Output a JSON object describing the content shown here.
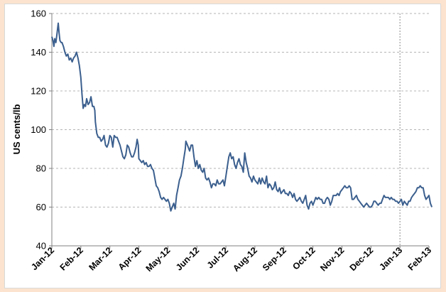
{
  "chart_data": {
    "type": "line",
    "title": "",
    "xlabel": "",
    "ylabel": "US cents/lb",
    "ylim": [
      40,
      160
    ],
    "yticks": [
      40,
      60,
      80,
      100,
      120,
      140,
      160
    ],
    "xticks": [
      "Jan-12",
      "Feb-12",
      "Mar-12",
      "Apr-12",
      "May-12",
      "Jun-12",
      "Jul-12",
      "Aug-12",
      "Sep-12",
      "Oct-12",
      "Nov-12",
      "Dec-12",
      "Jan-13",
      "Feb-13"
    ],
    "grid": "horizontal dashed",
    "legend": "none",
    "marker_line": "Jan-13",
    "line_color": "#3b5f8e",
    "series": [
      {
        "values": [
          [
            0.0,
            148
          ],
          [
            0.04,
            146
          ],
          [
            0.07,
            143
          ],
          [
            0.1,
            147
          ],
          [
            0.14,
            145
          ],
          [
            0.18,
            150
          ],
          [
            0.22,
            155
          ],
          [
            0.25,
            150
          ],
          [
            0.28,
            146
          ],
          [
            0.32,
            145
          ],
          [
            0.35,
            145
          ],
          [
            0.4,
            143
          ],
          [
            0.45,
            140
          ],
          [
            0.5,
            138
          ],
          [
            0.55,
            139
          ],
          [
            0.6,
            136
          ],
          [
            0.65,
            137
          ],
          [
            0.7,
            135
          ],
          [
            0.75,
            137
          ],
          [
            0.8,
            138
          ],
          [
            0.85,
            140
          ],
          [
            0.9,
            137
          ],
          [
            0.95,
            133
          ],
          [
            1.0,
            127
          ],
          [
            1.04,
            118
          ],
          [
            1.08,
            111
          ],
          [
            1.12,
            113
          ],
          [
            1.16,
            112
          ],
          [
            1.2,
            116
          ],
          [
            1.25,
            113
          ],
          [
            1.3,
            114
          ],
          [
            1.35,
            117
          ],
          [
            1.4,
            112
          ],
          [
            1.45,
            112
          ],
          [
            1.48,
            110
          ],
          [
            1.5,
            104
          ],
          [
            1.55,
            98
          ],
          [
            1.6,
            96
          ],
          [
            1.65,
            96
          ],
          [
            1.7,
            94
          ],
          [
            1.75,
            95
          ],
          [
            1.8,
            97
          ],
          [
            1.85,
            92
          ],
          [
            1.9,
            91
          ],
          [
            1.95,
            93
          ],
          [
            2.0,
            97
          ],
          [
            2.05,
            96
          ],
          [
            2.1,
            91
          ],
          [
            2.15,
            97
          ],
          [
            2.2,
            96
          ],
          [
            2.25,
            96
          ],
          [
            2.3,
            94
          ],
          [
            2.35,
            92
          ],
          [
            2.4,
            89
          ],
          [
            2.45,
            86
          ],
          [
            2.5,
            85
          ],
          [
            2.55,
            87
          ],
          [
            2.6,
            92
          ],
          [
            2.65,
            91
          ],
          [
            2.7,
            88
          ],
          [
            2.75,
            86
          ],
          [
            2.8,
            86
          ],
          [
            2.85,
            88
          ],
          [
            2.9,
            91
          ],
          [
            2.94,
            95
          ],
          [
            2.98,
            92
          ],
          [
            3.0,
            85
          ],
          [
            3.05,
            84
          ],
          [
            3.1,
            83
          ],
          [
            3.15,
            84
          ],
          [
            3.2,
            82
          ],
          [
            3.25,
            83
          ],
          [
            3.3,
            81
          ],
          [
            3.35,
            81
          ],
          [
            3.4,
            82
          ],
          [
            3.45,
            80
          ],
          [
            3.5,
            79
          ],
          [
            3.55,
            75
          ],
          [
            3.6,
            71
          ],
          [
            3.65,
            70
          ],
          [
            3.7,
            68
          ],
          [
            3.75,
            65
          ],
          [
            3.8,
            64
          ],
          [
            3.85,
            65
          ],
          [
            3.9,
            64
          ],
          [
            3.95,
            63
          ],
          [
            4.0,
            64
          ],
          [
            4.05,
            62
          ],
          [
            4.1,
            58
          ],
          [
            4.15,
            60
          ],
          [
            4.2,
            62
          ],
          [
            4.25,
            59
          ],
          [
            4.3,
            66
          ],
          [
            4.35,
            70
          ],
          [
            4.4,
            74
          ],
          [
            4.45,
            76
          ],
          [
            4.5,
            80
          ],
          [
            4.55,
            85
          ],
          [
            4.6,
            90
          ],
          [
            4.62,
            94
          ],
          [
            4.65,
            93
          ],
          [
            4.7,
            91
          ],
          [
            4.75,
            89
          ],
          [
            4.8,
            92
          ],
          [
            4.85,
            92
          ],
          [
            4.9,
            86
          ],
          [
            4.95,
            81
          ],
          [
            5.0,
            84
          ],
          [
            5.05,
            80
          ],
          [
            5.1,
            82
          ],
          [
            5.15,
            79
          ],
          [
            5.2,
            78
          ],
          [
            5.25,
            80
          ],
          [
            5.3,
            75
          ],
          [
            5.35,
            74
          ],
          [
            5.4,
            75
          ],
          [
            5.45,
            73
          ],
          [
            5.5,
            70
          ],
          [
            5.55,
            72
          ],
          [
            5.6,
            72
          ],
          [
            5.65,
            71
          ],
          [
            5.7,
            74
          ],
          [
            5.75,
            72
          ],
          [
            5.8,
            72
          ],
          [
            5.85,
            73
          ],
          [
            5.9,
            74
          ],
          [
            5.95,
            71
          ],
          [
            6.0,
            76
          ],
          [
            6.05,
            81
          ],
          [
            6.1,
            86
          ],
          [
            6.15,
            88
          ],
          [
            6.2,
            85
          ],
          [
            6.25,
            86
          ],
          [
            6.3,
            82
          ],
          [
            6.35,
            80
          ],
          [
            6.4,
            83
          ],
          [
            6.45,
            85
          ],
          [
            6.5,
            82
          ],
          [
            6.55,
            81
          ],
          [
            6.6,
            78
          ],
          [
            6.65,
            88
          ],
          [
            6.7,
            83
          ],
          [
            6.75,
            80
          ],
          [
            6.8,
            76
          ],
          [
            6.85,
            75
          ],
          [
            6.9,
            73
          ],
          [
            6.95,
            76
          ],
          [
            7.0,
            74
          ],
          [
            7.05,
            73
          ],
          [
            7.1,
            72
          ],
          [
            7.15,
            75
          ],
          [
            7.2,
            72
          ],
          [
            7.25,
            75
          ],
          [
            7.3,
            73
          ],
          [
            7.35,
            72
          ],
          [
            7.4,
            76
          ],
          [
            7.45,
            70
          ],
          [
            7.5,
            72
          ],
          [
            7.55,
            71
          ],
          [
            7.6,
            69
          ],
          [
            7.65,
            70
          ],
          [
            7.7,
            73
          ],
          [
            7.75,
            69
          ],
          [
            7.8,
            68
          ],
          [
            7.85,
            70
          ],
          [
            7.9,
            67
          ],
          [
            7.95,
            68
          ],
          [
            8.0,
            69
          ],
          [
            8.05,
            67
          ],
          [
            8.1,
            67
          ],
          [
            8.15,
            66
          ],
          [
            8.2,
            68
          ],
          [
            8.25,
            67
          ],
          [
            8.3,
            65
          ],
          [
            8.35,
            67
          ],
          [
            8.4,
            64
          ],
          [
            8.45,
            63
          ],
          [
            8.5,
            64
          ],
          [
            8.55,
            65
          ],
          [
            8.6,
            63
          ],
          [
            8.65,
            62
          ],
          [
            8.7,
            64
          ],
          [
            8.75,
            66
          ],
          [
            8.8,
            61
          ],
          [
            8.85,
            59
          ],
          [
            8.9,
            62
          ],
          [
            8.95,
            63
          ],
          [
            9.0,
            61
          ],
          [
            9.05,
            63
          ],
          [
            9.1,
            65
          ],
          [
            9.15,
            64
          ],
          [
            9.2,
            65
          ],
          [
            9.25,
            64
          ],
          [
            9.3,
            64
          ],
          [
            9.35,
            62
          ],
          [
            9.4,
            62
          ],
          [
            9.45,
            64
          ],
          [
            9.5,
            65
          ],
          [
            9.55,
            64
          ],
          [
            9.6,
            61
          ],
          [
            9.65,
            63
          ],
          [
            9.7,
            66
          ],
          [
            9.75,
            66
          ],
          [
            9.8,
            66
          ],
          [
            9.85,
            67
          ],
          [
            9.9,
            66
          ],
          [
            9.95,
            68
          ],
          [
            10.0,
            69
          ],
          [
            10.05,
            70
          ],
          [
            10.1,
            71
          ],
          [
            10.15,
            70
          ],
          [
            10.2,
            70
          ],
          [
            10.25,
            71
          ],
          [
            10.3,
            70
          ],
          [
            10.35,
            64
          ],
          [
            10.4,
            64
          ],
          [
            10.45,
            65
          ],
          [
            10.5,
            66
          ],
          [
            10.55,
            64
          ],
          [
            10.6,
            63
          ],
          [
            10.65,
            62
          ],
          [
            10.7,
            61
          ],
          [
            10.75,
            60
          ],
          [
            10.8,
            61
          ],
          [
            10.85,
            62
          ],
          [
            10.9,
            61
          ],
          [
            10.95,
            60
          ],
          [
            11.0,
            60
          ],
          [
            11.05,
            61
          ],
          [
            11.1,
            63
          ],
          [
            11.15,
            63
          ],
          [
            11.2,
            62
          ],
          [
            11.25,
            61
          ],
          [
            11.3,
            62
          ],
          [
            11.35,
            62
          ],
          [
            11.4,
            64
          ],
          [
            11.45,
            66
          ],
          [
            11.5,
            65
          ],
          [
            11.55,
            65
          ],
          [
            11.6,
            65
          ],
          [
            11.65,
            64
          ],
          [
            11.7,
            65
          ],
          [
            11.75,
            64
          ],
          [
            11.8,
            64
          ],
          [
            11.85,
            63
          ],
          [
            11.9,
            63
          ],
          [
            11.95,
            62
          ],
          [
            12.0,
            63
          ],
          [
            12.05,
            64
          ],
          [
            12.1,
            61
          ],
          [
            12.15,
            63
          ],
          [
            12.2,
            62
          ],
          [
            12.25,
            61
          ],
          [
            12.3,
            63
          ],
          [
            12.35,
            63
          ],
          [
            12.4,
            65
          ],
          [
            12.45,
            66
          ],
          [
            12.5,
            67
          ],
          [
            12.55,
            68
          ],
          [
            12.6,
            70
          ],
          [
            12.65,
            70
          ],
          [
            12.7,
            71
          ],
          [
            12.75,
            70
          ],
          [
            12.8,
            70
          ],
          [
            12.85,
            66
          ],
          [
            12.9,
            64
          ],
          [
            12.95,
            65
          ],
          [
            13.0,
            66
          ],
          [
            13.05,
            62
          ],
          [
            13.1,
            60
          ]
        ]
      }
    ]
  }
}
